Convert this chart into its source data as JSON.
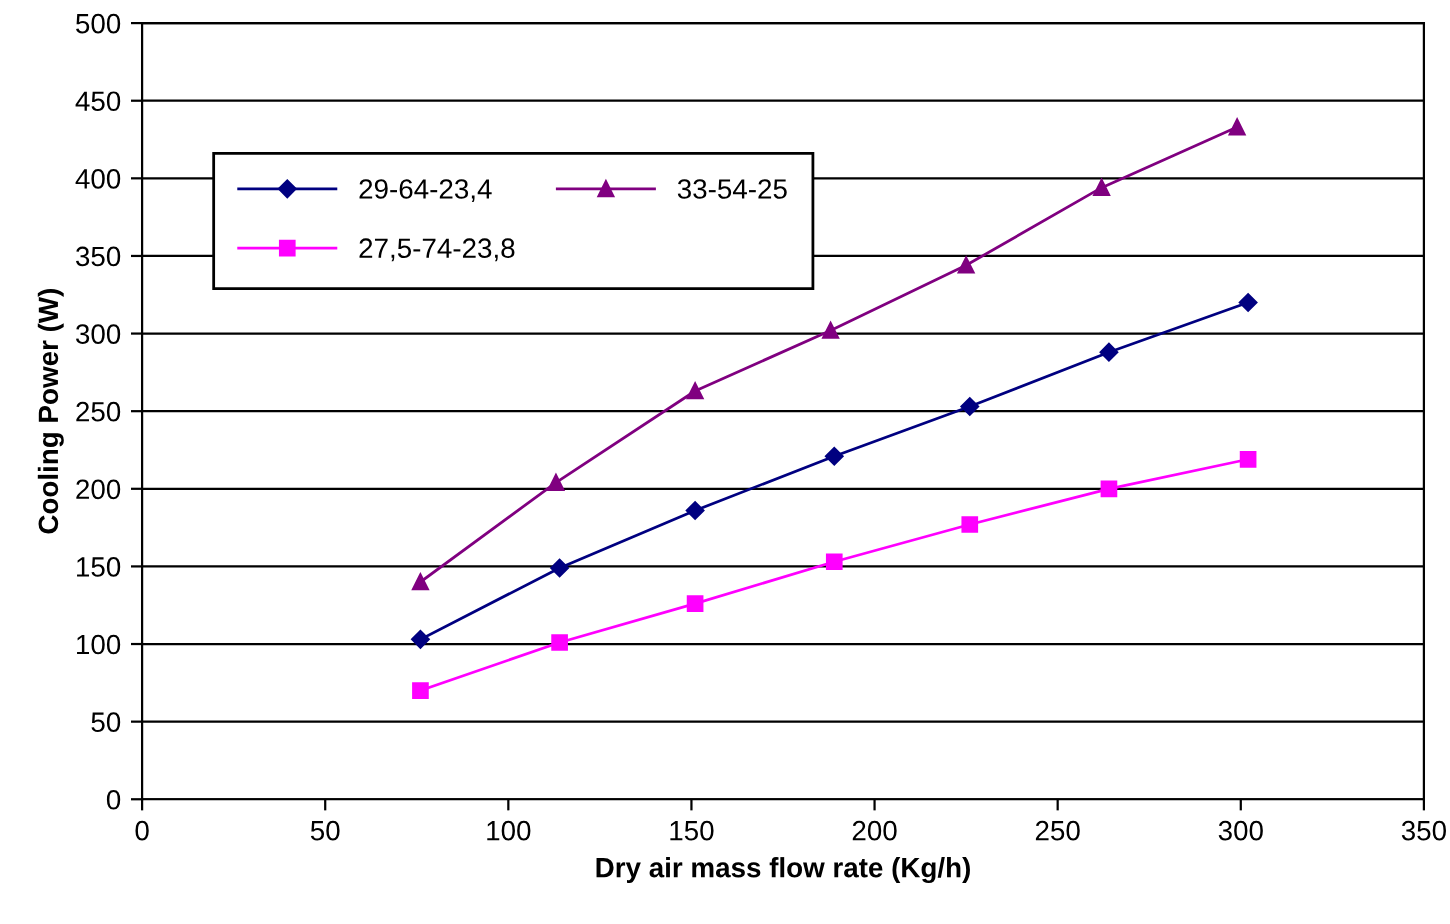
{
  "chart_data": {
    "type": "line",
    "xlabel": "Dry air mass flow rate (Kg/h)",
    "ylabel": "Cooling Power (W)",
    "xlim": [
      0,
      350
    ],
    "xticks": [
      0,
      50,
      100,
      150,
      200,
      250,
      300,
      350
    ],
    "ylim": [
      0,
      500
    ],
    "yticks": [
      0,
      50,
      100,
      150,
      200,
      250,
      300,
      350,
      400,
      450,
      500
    ],
    "grid": "y",
    "legend": "top left",
    "series": [
      {
        "name": "29-64-23,4",
        "color": "#000080",
        "marker": "diamond",
        "x": [
          76,
          114,
          151,
          189,
          226,
          264,
          302
        ],
        "values": [
          103,
          149,
          186,
          221,
          253,
          288,
          320
        ]
      },
      {
        "name": "27,5-74-23,8",
        "color": "#ff00ff",
        "marker": "square",
        "x": [
          76,
          114,
          151,
          189,
          226,
          264,
          302
        ],
        "values": [
          70,
          101,
          126,
          153,
          177,
          200,
          219
        ]
      },
      {
        "name": "33-54-25",
        "color": "#800080",
        "marker": "triangle",
        "x": [
          76,
          113,
          151,
          188,
          225,
          262,
          299
        ],
        "values": [
          140,
          204,
          263,
          302,
          344,
          394,
          433
        ]
      }
    ]
  }
}
